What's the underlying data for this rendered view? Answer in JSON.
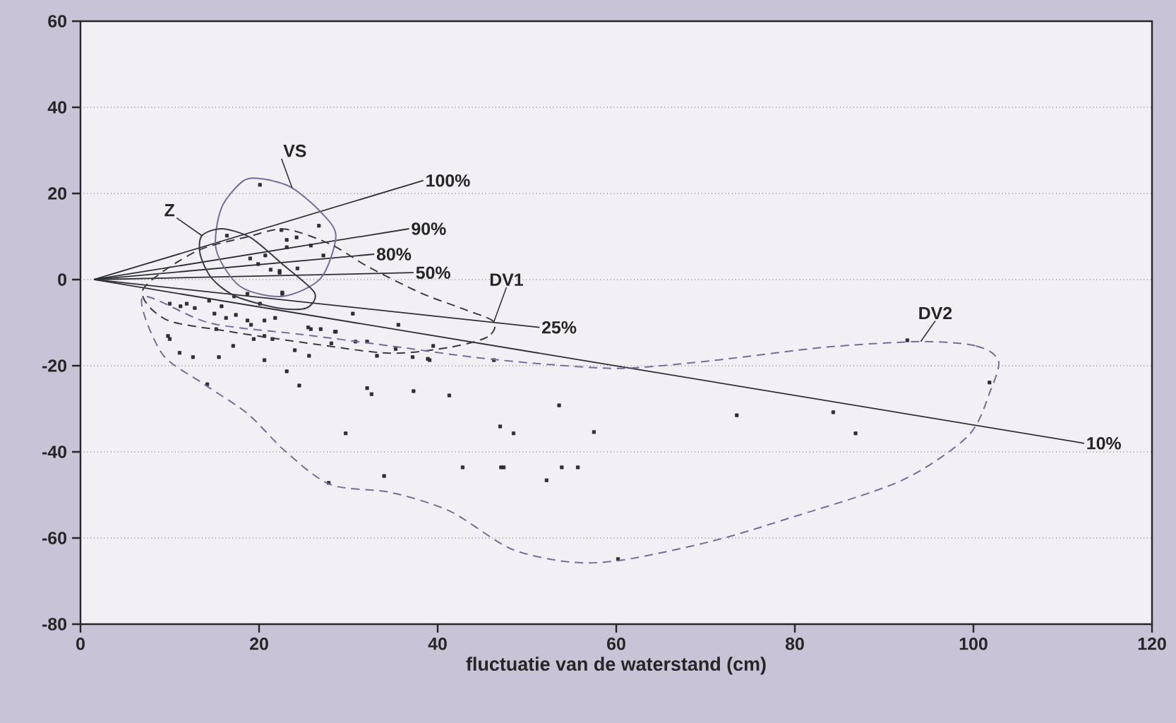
{
  "chart_data": {
    "type": "scatter",
    "xlabel": "fluctuatie van de waterstand (cm)",
    "xlim": [
      0,
      120
    ],
    "xticks": [
      0,
      20,
      40,
      60,
      80,
      100,
      120
    ],
    "ylim": [
      -80,
      60
    ],
    "yticks": [
      -80,
      -60,
      -40,
      -20,
      0,
      20,
      40,
      60
    ],
    "grid": "y",
    "series": [
      {
        "color": "#2e2e35",
        "marker": "square",
        "x": [
          20.1,
          26.7,
          22.5,
          23.1,
          24.2,
          25.8,
          23.1,
          27.2,
          16.4,
          19.0,
          20.7,
          19.9,
          21.3,
          22.3,
          24.3,
          18.7,
          17.2,
          20.1,
          22.6,
          22.3,
          22.6,
          10.0,
          11.2,
          11.9,
          12.8,
          14.4,
          15.0,
          15.8,
          16.3,
          17.4,
          18.7,
          19.1,
          20.6,
          21.8,
          15.2,
          19.4,
          20.6,
          21.5,
          10.0,
          11.1,
          12.6,
          15.5,
          17.1,
          20.6,
          23.1,
          24.0,
          25.6,
          24.5,
          14.2,
          25.8,
          26.9,
          28.5,
          28.1,
          30.5,
          30.8,
          32.1,
          33.2,
          32.1,
          32.6,
          35.6,
          35.3,
          37.3,
          37.2,
          39.5,
          39.1,
          41.3,
          29.7,
          27.8,
          34.0,
          42.8,
          47.1,
          47.0,
          47.4,
          52.2,
          53.9,
          55.7,
          48.5,
          53.6,
          57.5,
          60.2,
          73.5,
          84.3,
          46.3,
          38.9,
          25.5,
          28.6,
          92.6,
          101.8,
          86.8,
          9.8
        ],
        "values": [
          22.0,
          12.5,
          11.5,
          9.2,
          9.8,
          7.9,
          7.5,
          5.6,
          10.2,
          4.9,
          5.6,
          3.6,
          2.3,
          1.6,
          2.6,
          -3.3,
          -3.9,
          -5.6,
          -3.3,
          2.0,
          -3.0,
          -5.6,
          -6.2,
          -5.6,
          -6.6,
          -4.9,
          -7.9,
          -6.2,
          -8.9,
          -8.2,
          -9.5,
          -10.5,
          -9.5,
          -8.9,
          -11.5,
          -13.8,
          -13.1,
          -13.8,
          -13.8,
          -17.0,
          -18.0,
          -18.0,
          -15.4,
          -18.7,
          -21.3,
          -16.4,
          -17.7,
          -24.6,
          -24.3,
          -11.5,
          -11.5,
          -12.1,
          -14.8,
          -7.9,
          -14.4,
          -14.4,
          -17.7,
          -25.2,
          -26.6,
          -10.5,
          -16.1,
          -25.9,
          -18.0,
          -15.4,
          -18.7,
          -26.9,
          -35.7,
          -47.2,
          -45.6,
          -43.6,
          -43.6,
          -34.1,
          -43.6,
          -46.6,
          -43.6,
          -43.6,
          -35.7,
          -29.2,
          -35.4,
          -64.9,
          -31.5,
          -30.8,
          -18.7,
          -18.4,
          -11.1,
          -12.1,
          -14.1,
          -23.9,
          -35.7,
          -13.1
        ]
      },
      {
        "type": "line",
        "name": "100%",
        "color": "#2e2e35",
        "line_style": "solid",
        "x": [
          1.5,
          38.4
        ],
        "values": [
          0,
          23
        ]
      },
      {
        "type": "line",
        "name": "90%",
        "color": "#2e2e35",
        "line_style": "solid",
        "x": [
          1.5,
          36.8
        ],
        "values": [
          0,
          11.8
        ]
      },
      {
        "type": "line",
        "name": "80%",
        "color": "#2e2e35",
        "line_style": "solid",
        "x": [
          1.5,
          32.9
        ],
        "values": [
          0,
          5.9
        ]
      },
      {
        "type": "line",
        "name": "50%",
        "color": "#2e2e35",
        "line_style": "solid",
        "x": [
          1.5,
          37.3
        ],
        "values": [
          0,
          1.6
        ]
      },
      {
        "type": "line",
        "name": "25%",
        "color": "#2e2e35",
        "line_style": "solid",
        "x": [
          1.5,
          51.4
        ],
        "values": [
          0,
          -11.1
        ]
      },
      {
        "type": "line",
        "name": "10%",
        "color": "#2e2e35",
        "line_style": "solid",
        "x": [
          1.5,
          112.4
        ],
        "values": [
          0,
          -38
        ]
      }
    ],
    "annotations": [
      "VS",
      "Z",
      "DV1",
      "DV2"
    ]
  }
}
